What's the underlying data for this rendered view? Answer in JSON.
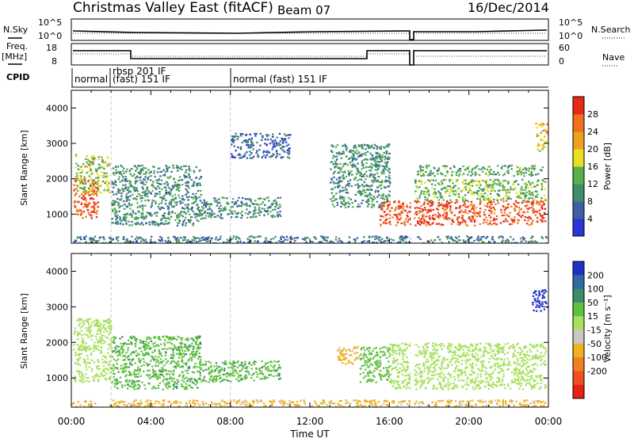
{
  "header": {
    "station": "Christmas Valley East (fitACF)",
    "beam": "Beam 07",
    "date": "16/Dec/2014"
  },
  "status_panels": {
    "nsky_label": "N.Sky",
    "nsearch_label": "N.Search",
    "noise_ticks": [
      "10^5",
      "10^0"
    ],
    "freq_label": "Freq.",
    "freq_unit": "[MHz]",
    "freq_ticks": [
      "18",
      "8"
    ],
    "nave_label": "Nave",
    "nave_ticks": [
      "60",
      "0"
    ],
    "cpid_label": "CPID",
    "cpid_segments": [
      {
        "start": "00:00",
        "label": "normal"
      },
      {
        "start": "01:55",
        "label": "rbsp 201 IF",
        "sublabel": "(fast) 151 IF"
      },
      {
        "start": "08:00",
        "label": "normal (fast) 151 IF"
      }
    ]
  },
  "chart_data": [
    {
      "type": "heatmap",
      "panel": "power",
      "ylabel": "Slant Range [km]",
      "ylim": [
        180,
        4500
      ],
      "yticks": [
        1000,
        2000,
        3000,
        4000
      ],
      "xlim": [
        "00:00",
        "24:00"
      ],
      "colorbar": {
        "label": "Power [dB]",
        "ticks": [
          4,
          8,
          12,
          16,
          20,
          24,
          28
        ],
        "range": [
          0,
          32
        ],
        "colors": [
          "#2b36d8",
          "#3e5fa4",
          "#3f8e6b",
          "#58b04a",
          "#e8e020",
          "#f0a020",
          "#f07020",
          "#e82a18"
        ]
      },
      "regions": [
        {
          "from": "00:05",
          "to": "01:20",
          "range_km": [
            900,
            2000
          ],
          "dB": 28
        },
        {
          "from": "00:10",
          "to": "01:55",
          "range_km": [
            1600,
            2700
          ],
          "dB": 16
        },
        {
          "from": "02:00",
          "to": "06:30",
          "range_km": [
            700,
            2400
          ],
          "dB": 10
        },
        {
          "from": "06:30",
          "to": "10:30",
          "range_km": [
            900,
            1500
          ],
          "dB": 10
        },
        {
          "from": "08:00",
          "to": "11:00",
          "range_km": [
            2600,
            3300
          ],
          "dB": 6
        },
        {
          "from": "13:00",
          "to": "16:00",
          "range_km": [
            1200,
            3000
          ],
          "dB": 10
        },
        {
          "from": "15:30",
          "to": "23:50",
          "range_km": [
            700,
            1400
          ],
          "dB": 28
        },
        {
          "from": "17:10",
          "to": "23:50",
          "range_km": [
            1400,
            2000
          ],
          "dB": 14
        },
        {
          "from": "17:20",
          "to": "23:40",
          "range_km": [
            2100,
            2400
          ],
          "dB": 12
        },
        {
          "from": "23:20",
          "to": "23:55",
          "range_km": [
            2800,
            3600
          ],
          "dB": 20
        },
        {
          "from": "00:00",
          "to": "24:00",
          "range_km": [
            200,
            400
          ],
          "dB": 8
        }
      ]
    },
    {
      "type": "heatmap",
      "panel": "velocity",
      "ylabel": "Slant Range [km]",
      "xlabel": "Time UT",
      "ylim": [
        180,
        4500
      ],
      "yticks": [
        1000,
        2000,
        3000,
        4000
      ],
      "xlim": [
        "00:00",
        "24:00"
      ],
      "xticks": [
        "00:00",
        "04:00",
        "08:00",
        "12:00",
        "16:00",
        "20:00",
        "00:00"
      ],
      "colorbar": {
        "label": "Velocity [m s⁻¹]",
        "ticks": [
          200,
          100,
          50,
          15,
          -15,
          -50,
          -100,
          -200
        ],
        "colors": [
          "#2030c8",
          "#2f6aa0",
          "#3f8a6a",
          "#60c040",
          "#a8e060",
          "#c8c8c0",
          "#f0b020",
          "#f08020",
          "#f05020",
          "#e82010"
        ]
      },
      "regions": [
        {
          "from": "00:05",
          "to": "02:00",
          "range_km": [
            900,
            2700
          ],
          "velocity": 0
        },
        {
          "from": "02:00",
          "to": "06:30",
          "range_km": [
            700,
            2200
          ],
          "velocity": 40
        },
        {
          "from": "06:30",
          "to": "10:30",
          "range_km": [
            900,
            1500
          ],
          "velocity": 40
        },
        {
          "from": "13:20",
          "to": "14:30",
          "range_km": [
            1400,
            1900
          ],
          "velocity": -60
        },
        {
          "from": "14:30",
          "to": "16:00",
          "range_km": [
            900,
            1900
          ],
          "velocity": 30
        },
        {
          "from": "16:00",
          "to": "23:50",
          "range_km": [
            700,
            2000
          ],
          "velocity": 0
        },
        {
          "from": "23:10",
          "to": "23:55",
          "range_km": [
            2900,
            3500
          ],
          "velocity": 220
        },
        {
          "from": "00:00",
          "to": "24:00",
          "range_km": [
            200,
            400
          ],
          "velocity": -60
        }
      ]
    }
  ]
}
